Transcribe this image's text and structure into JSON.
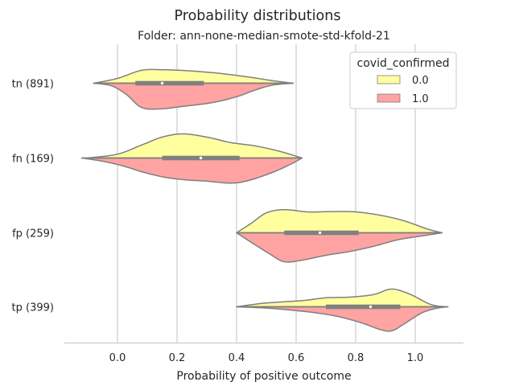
{
  "chart_data": {
    "type": "violin",
    "title": "Probability distributions",
    "subtitle": "Folder: ann-none-median-smote-std-kfold-21",
    "xlabel": "Probability of positive outcome",
    "ylabel": "",
    "xlim": [
      -0.18,
      1.16
    ],
    "xticks": [
      0.0,
      0.2,
      0.4,
      0.6,
      0.8,
      1.0
    ],
    "xtick_labels": [
      "0.0",
      "0.2",
      "0.4",
      "0.6",
      "0.8",
      "1.0"
    ],
    "grid": "vertical",
    "categories": [
      "tn (891)",
      "fn (169)",
      "fp (259)",
      "tp (399)"
    ],
    "legend": {
      "title": "covid_confirmed",
      "placement": "top-right",
      "entries": [
        {
          "label": "0.0",
          "color": "#ffffa0"
        },
        {
          "label": "1.0",
          "color": "#ffa3a3"
        }
      ]
    },
    "series": [
      {
        "name": "0.0",
        "color": "#ffffa0",
        "side": "top",
        "profiles": [
          [
            [
              -0.08,
              0.0
            ],
            [
              0.0,
              0.15
            ],
            [
              0.08,
              0.4
            ],
            [
              0.15,
              0.42
            ],
            [
              0.25,
              0.38
            ],
            [
              0.35,
              0.3
            ],
            [
              0.45,
              0.18
            ],
            [
              0.52,
              0.08
            ],
            [
              0.59,
              0.0
            ]
          ],
          [
            [
              -0.1,
              0.0
            ],
            [
              0.0,
              0.12
            ],
            [
              0.08,
              0.4
            ],
            [
              0.15,
              0.65
            ],
            [
              0.22,
              0.75
            ],
            [
              0.3,
              0.65
            ],
            [
              0.38,
              0.48
            ],
            [
              0.46,
              0.38
            ],
            [
              0.54,
              0.22
            ],
            [
              0.62,
              0.0
            ]
          ],
          [
            [
              0.4,
              0.0
            ],
            [
              0.45,
              0.3
            ],
            [
              0.5,
              0.62
            ],
            [
              0.56,
              0.72
            ],
            [
              0.64,
              0.65
            ],
            [
              0.72,
              0.66
            ],
            [
              0.8,
              0.65
            ],
            [
              0.88,
              0.55
            ],
            [
              0.96,
              0.38
            ],
            [
              1.04,
              0.12
            ],
            [
              1.09,
              0.0
            ]
          ],
          [
            [
              0.4,
              0.0
            ],
            [
              0.48,
              0.1
            ],
            [
              0.55,
              0.15
            ],
            [
              0.63,
              0.2
            ],
            [
              0.7,
              0.28
            ],
            [
              0.78,
              0.3
            ],
            [
              0.86,
              0.38
            ],
            [
              0.92,
              0.55
            ],
            [
              0.98,
              0.4
            ],
            [
              1.05,
              0.08
            ],
            [
              1.1,
              0.0
            ]
          ]
        ],
        "medians": [
          0.15,
          0.28,
          0.68,
          0.85
        ],
        "quartiles": [
          [
            0.06,
            0.29
          ],
          [
            0.15,
            0.41
          ],
          [
            0.56,
            0.81
          ],
          [
            0.7,
            0.95
          ]
        ]
      },
      {
        "name": "1.0",
        "color": "#ffa3a3",
        "side": "bottom",
        "profiles": [
          [
            [
              -0.08,
              0.0
            ],
            [
              -0.02,
              0.08
            ],
            [
              0.03,
              0.35
            ],
            [
              0.08,
              0.75
            ],
            [
              0.14,
              0.8
            ],
            [
              0.22,
              0.72
            ],
            [
              0.32,
              0.6
            ],
            [
              0.4,
              0.42
            ],
            [
              0.46,
              0.22
            ],
            [
              0.52,
              0.06
            ],
            [
              0.59,
              0.0
            ]
          ],
          [
            [
              -0.12,
              0.0
            ],
            [
              -0.05,
              0.1
            ],
            [
              0.02,
              0.25
            ],
            [
              0.09,
              0.45
            ],
            [
              0.16,
              0.6
            ],
            [
              0.23,
              0.68
            ],
            [
              0.3,
              0.72
            ],
            [
              0.38,
              0.78
            ],
            [
              0.44,
              0.7
            ],
            [
              0.52,
              0.45
            ],
            [
              0.58,
              0.2
            ],
            [
              0.62,
              0.0
            ]
          ],
          [
            [
              0.4,
              0.0
            ],
            [
              0.45,
              0.3
            ],
            [
              0.51,
              0.65
            ],
            [
              0.56,
              0.9
            ],
            [
              0.62,
              0.85
            ],
            [
              0.7,
              0.7
            ],
            [
              0.78,
              0.58
            ],
            [
              0.86,
              0.42
            ],
            [
              0.94,
              0.22
            ],
            [
              1.02,
              0.1
            ],
            [
              1.09,
              0.0
            ]
          ],
          [
            [
              0.4,
              0.0
            ],
            [
              0.5,
              0.04
            ],
            [
              0.58,
              0.1
            ],
            [
              0.66,
              0.18
            ],
            [
              0.74,
              0.3
            ],
            [
              0.82,
              0.5
            ],
            [
              0.88,
              0.7
            ],
            [
              0.92,
              0.75
            ],
            [
              0.96,
              0.55
            ],
            [
              1.02,
              0.2
            ],
            [
              1.07,
              0.05
            ],
            [
              1.11,
              0.0
            ]
          ]
        ]
      }
    ]
  }
}
